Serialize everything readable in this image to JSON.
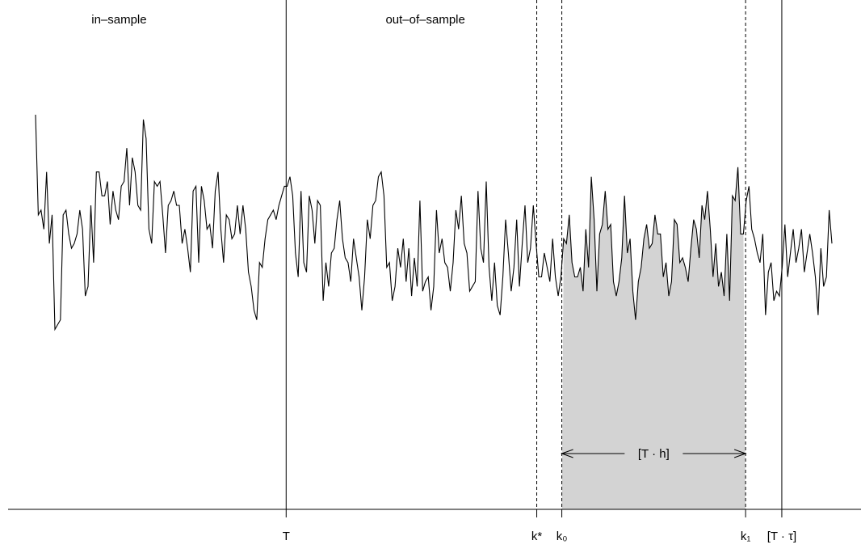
{
  "chart_data": {
    "type": "line",
    "title": "",
    "xlabel": "",
    "ylabel": "",
    "x_range": [
      0,
      286
    ],
    "y_range": [
      0,
      100
    ],
    "region_labels": [
      {
        "name": "in-sample-label",
        "text": "in–sample",
        "x": 30
      },
      {
        "name": "out-of-sample-label",
        "text": "out–of–sample",
        "x": 140
      }
    ],
    "vertical_lines": [
      {
        "name": "T",
        "x": 90,
        "style": "solid"
      },
      {
        "name": "k-star",
        "x": 180,
        "style": "dashed"
      },
      {
        "name": "k0",
        "x": 189,
        "style": "dashed"
      },
      {
        "name": "k1",
        "x": 255,
        "style": "dashed"
      },
      {
        "name": "T-tau",
        "x": 268,
        "style": "solid"
      }
    ],
    "x_ticks": [
      {
        "name": "tick-T",
        "x": 90,
        "label": "T"
      },
      {
        "name": "tick-k-star",
        "x": 180,
        "label": "k*"
      },
      {
        "name": "tick-k0",
        "x": 189,
        "label": "k₀"
      },
      {
        "name": "tick-k1",
        "x": 255,
        "label": "k₁"
      },
      {
        "name": "tick-T-tau",
        "x": 268,
        "label": "[T · τ]"
      }
    ],
    "shaded_region": {
      "from": 189,
      "to": 255
    },
    "window_label": "[T · h]",
    "series": [
      {
        "values": [
          79,
          58,
          59,
          55,
          67,
          52,
          58,
          34,
          35,
          36,
          58,
          59,
          54,
          51,
          52,
          54,
          59,
          55,
          41,
          43,
          60,
          48,
          67,
          67,
          62,
          62,
          65,
          56,
          63,
          59,
          57,
          64,
          65,
          72,
          60,
          70,
          67,
          60,
          59,
          78,
          74,
          55,
          52,
          65,
          64,
          65,
          58,
          50,
          60,
          61,
          63,
          60,
          60,
          52,
          55,
          51,
          46,
          63,
          64,
          48,
          64,
          61,
          55,
          56,
          51,
          63,
          67,
          55,
          48,
          58,
          57,
          53,
          54,
          60,
          54,
          60,
          55,
          46,
          43,
          38,
          36,
          48,
          47,
          53,
          57,
          58,
          59,
          57,
          60,
          62,
          64,
          64,
          66,
          62,
          50,
          45,
          63,
          48,
          46,
          62,
          59,
          52,
          61,
          60,
          40,
          48,
          43,
          50,
          51,
          57,
          61,
          53,
          49,
          48,
          44,
          53,
          49,
          45,
          38,
          45,
          57,
          53,
          60,
          61,
          66,
          67,
          62,
          47,
          48,
          40,
          43,
          51,
          47,
          53,
          44,
          51,
          41,
          49,
          43,
          61,
          42,
          44,
          45,
          38,
          43,
          59,
          50,
          53,
          48,
          47,
          42,
          48,
          59,
          55,
          62,
          52,
          50,
          42,
          43,
          44,
          63,
          51,
          48,
          65,
          47,
          40,
          48,
          39,
          37,
          45,
          57,
          50,
          42,
          47,
          57,
          43,
          52,
          60,
          48,
          51,
          60,
          52,
          45,
          45,
          50,
          47,
          44,
          53,
          45,
          41,
          45,
          53,
          52,
          58,
          48,
          45,
          45,
          47,
          42,
          55,
          47,
          66,
          57,
          42,
          54,
          56,
          63,
          55,
          56,
          44,
          41,
          44,
          49,
          62,
          50,
          53,
          42,
          36,
          44,
          47,
          53,
          56,
          51,
          52,
          58,
          54,
          54,
          45,
          48,
          41,
          44,
          57,
          56,
          48,
          49,
          47,
          44,
          51,
          57,
          55,
          49,
          60,
          57,
          63,
          55,
          45,
          52,
          43,
          46,
          41,
          54,
          40,
          62,
          61,
          68,
          54,
          54,
          61,
          64,
          55,
          53,
          50,
          48,
          54,
          37,
          46,
          48,
          40,
          42,
          41,
          47,
          56,
          45,
          50,
          55,
          48,
          51,
          55,
          46,
          50,
          54,
          50,
          45,
          37,
          51,
          43,
          45,
          59,
          52
        ]
      }
    ]
  }
}
